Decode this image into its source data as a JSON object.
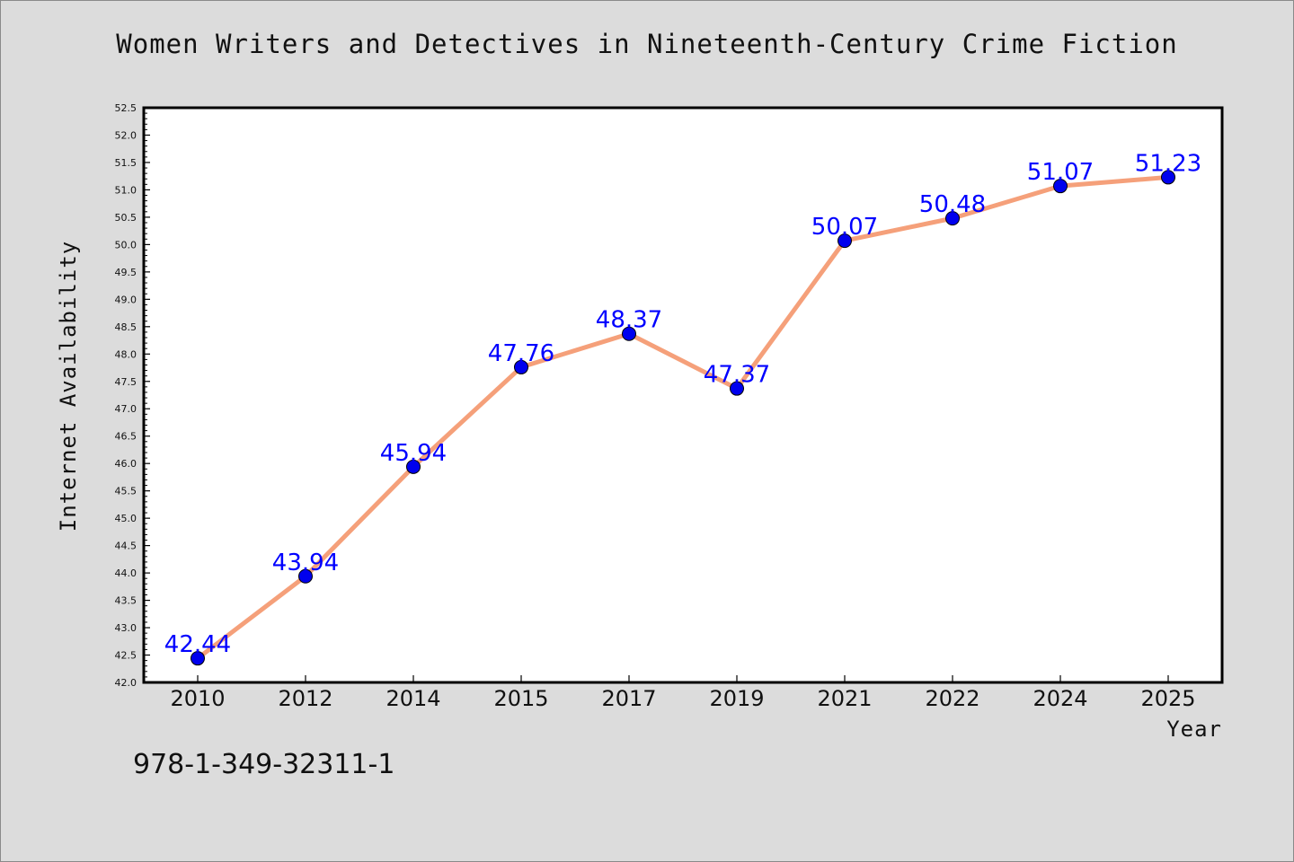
{
  "chart_data": {
    "type": "line",
    "title": "Women Writers and Detectives in Nineteenth-Century Crime Fiction",
    "xlabel": "Year",
    "ylabel": "Internet Availability",
    "categories": [
      "2010",
      "2012",
      "2014",
      "2015",
      "2017",
      "2019",
      "2021",
      "2022",
      "2024",
      "2025"
    ],
    "values": [
      42.44,
      43.94,
      45.94,
      47.76,
      48.37,
      47.37,
      50.07,
      50.48,
      51.07,
      51.23
    ],
    "data_labels": [
      "42.44",
      "43.94",
      "45.94",
      "47.76",
      "48.37",
      "47.37",
      "50.07",
      "50.48",
      "51.07",
      "51.23"
    ],
    "ylim": [
      42.0,
      52.5
    ],
    "yticks": [
      "42.0",
      "42.5",
      "43.0",
      "43.5",
      "44.0",
      "44.5",
      "45.0",
      "45.5",
      "46.0",
      "46.5",
      "47.0",
      "47.5",
      "48.0",
      "48.5",
      "49.0",
      "49.5",
      "50.0",
      "50.5",
      "51.0",
      "51.5",
      "52.0",
      "52.5"
    ],
    "grid": false,
    "line_color": "#f5a07a",
    "marker_color": "#0000ee",
    "label_color": "#0000ff"
  },
  "footer": {
    "isbn": "978-1-349-32311-1"
  }
}
